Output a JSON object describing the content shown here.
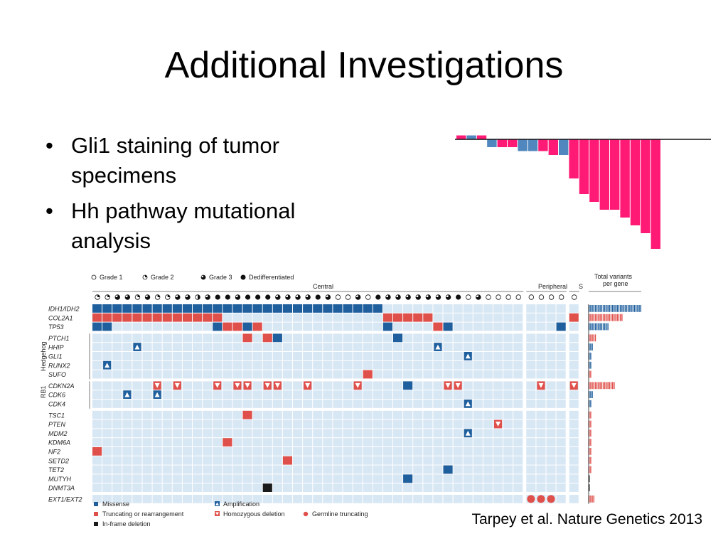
{
  "slide": {
    "title": "Additional Investigations",
    "bullets": [
      "Gli1 staining of tumor specimens",
      "Hh pathway mutational analysis"
    ],
    "bullet_glyph": "•",
    "citation": "Tarpey et al. Nature Genetics 2013"
  },
  "figure": {
    "grade_legend": [
      "Grade 1",
      "Grade 2",
      "Grade 3",
      "Dedifferentiated"
    ],
    "group_headers": {
      "central": "Central",
      "peripheral": "Peripheral",
      "s": "S",
      "total": "Total variants\nper gene"
    },
    "pathway_labels": {
      "hedgehog": "Hedgehog",
      "rb1": "RB1"
    },
    "genes": [
      "IDH1/IDH2",
      "COL2A1",
      "TP53",
      "PTCH1",
      "HHIP",
      "GLI1",
      "RUNX2",
      "SUFO",
      "CDKN2A",
      "CDK6",
      "CDK4",
      "TSC1",
      "PTEN",
      "MDM2",
      "KDM6A",
      "NF2",
      "SETD2",
      "TET2",
      "MUTYH",
      "DNMT3A",
      "EXT1/EXT2"
    ],
    "mutation_legend": [
      {
        "label": "Missense",
        "type": "missense"
      },
      {
        "label": "Amplification",
        "type": "amp"
      },
      {
        "label": "Truncating or rearrangement",
        "type": "trunc"
      },
      {
        "label": "Homozygous deletion",
        "type": "del"
      },
      {
        "label": "Germline truncating",
        "type": "germ"
      },
      {
        "label": "In-frame deletion",
        "type": "inframe"
      }
    ],
    "colors": {
      "missense": "#1f5f9e",
      "trunc": "#e0504b",
      "inframe": "#1a1a1a",
      "cell": "#d8e7f4",
      "barPink": "#ff1a75",
      "barBlue": "#4f87be",
      "totalRed": "#e0504b"
    },
    "sample_grades": [
      "q",
      "q",
      "3q",
      "3q",
      "q",
      "3q",
      "q",
      "q",
      "3q",
      "3q",
      "h",
      "3q",
      "D",
      "D",
      "3q",
      "D",
      "D",
      "D",
      "3q",
      "3q",
      "3q",
      "3q",
      "D",
      "3q",
      "o",
      "o",
      "3q",
      "o",
      "D",
      "3q",
      "3q",
      "3q",
      "3q",
      "3q",
      "3q",
      "3q",
      "D",
      "o",
      "3q",
      "o",
      "o",
      "o",
      "o",
      "o",
      "o",
      "o",
      "o",
      "o"
    ],
    "events": [
      {
        "gene": 0,
        "cols": [
          0,
          1,
          2,
          3,
          4,
          5,
          6,
          7,
          8,
          9,
          10,
          11,
          12,
          13,
          14,
          15,
          16,
          17,
          18,
          19,
          20,
          21,
          22,
          23,
          24,
          25,
          26,
          27,
          28
        ],
        "type": "missense"
      },
      {
        "gene": 1,
        "cols": [
          0,
          1,
          2,
          3,
          4,
          5,
          6,
          7,
          8,
          9,
          10,
          11,
          12,
          29,
          30,
          31,
          32,
          33
        ],
        "type": "trunc"
      },
      {
        "gene": 1,
        "cols": [
          47
        ],
        "type": "trunc"
      },
      {
        "gene": 2,
        "cols": [
          0,
          1,
          12,
          29,
          35
        ],
        "type": "missense"
      },
      {
        "gene": 2,
        "cols": [
          13,
          14,
          16,
          34
        ],
        "type": "trunc"
      },
      {
        "gene": 2,
        "cols": [
          15
        ],
        "type": "missense"
      },
      {
        "gene": 2,
        "cols": [
          46
        ],
        "type": "missense"
      },
      {
        "gene": 3,
        "cols": [
          15,
          17
        ],
        "type": "trunc"
      },
      {
        "gene": 3,
        "cols": [
          18,
          30
        ],
        "type": "missense"
      },
      {
        "gene": 4,
        "cols": [
          4,
          34
        ],
        "type": "amp"
      },
      {
        "gene": 5,
        "cols": [
          37
        ],
        "type": "amp"
      },
      {
        "gene": 6,
        "cols": [
          1
        ],
        "type": "amp"
      },
      {
        "gene": 7,
        "cols": [
          27
        ],
        "type": "trunc"
      },
      {
        "gene": 8,
        "cols": [
          6,
          8,
          12,
          14,
          15,
          17,
          18,
          21,
          26,
          35,
          36,
          44,
          47
        ],
        "type": "del"
      },
      {
        "gene": 8,
        "cols": [
          31
        ],
        "type": "missense"
      },
      {
        "gene": 9,
        "cols": [
          3,
          6
        ],
        "type": "amp"
      },
      {
        "gene": 10,
        "cols": [
          37
        ],
        "type": "amp"
      },
      {
        "gene": 11,
        "cols": [
          15
        ],
        "type": "trunc"
      },
      {
        "gene": 12,
        "cols": [
          40
        ],
        "type": "del"
      },
      {
        "gene": 13,
        "cols": [
          37
        ],
        "type": "amp"
      },
      {
        "gene": 14,
        "cols": [
          13
        ],
        "type": "trunc"
      },
      {
        "gene": 15,
        "cols": [
          0
        ],
        "type": "trunc"
      },
      {
        "gene": 16,
        "cols": [
          19
        ],
        "type": "trunc"
      },
      {
        "gene": 17,
        "cols": [
          35
        ],
        "type": "missense"
      },
      {
        "gene": 18,
        "cols": [
          31
        ],
        "type": "missense"
      },
      {
        "gene": 19,
        "cols": [
          17
        ],
        "type": "inframe"
      },
      {
        "gene": 20,
        "cols": [
          43,
          44,
          45
        ],
        "type": "germ"
      }
    ],
    "total_variants": [
      34,
      22,
      13,
      5,
      3,
      2,
      2,
      2,
      17,
      3,
      2,
      2,
      2,
      2,
      2,
      2,
      2,
      2,
      1,
      1,
      4
    ],
    "top_bars": {
      "values": [
        0.5,
        0.5,
        0.5,
        -1,
        -1,
        -1,
        -1.5,
        -1.5,
        -1.5,
        -2,
        -2,
        -5,
        -7,
        -8,
        -9,
        -9,
        -10,
        -11,
        -12,
        -14
      ],
      "colors": [
        "pink",
        "blue",
        "pink",
        "blue",
        "pink",
        "pink",
        "blue",
        "blue",
        "pink",
        "pink",
        "blue",
        "pink",
        "pink",
        "pink",
        "pink",
        "pink",
        "pink",
        "pink",
        "pink",
        "pink"
      ]
    }
  }
}
